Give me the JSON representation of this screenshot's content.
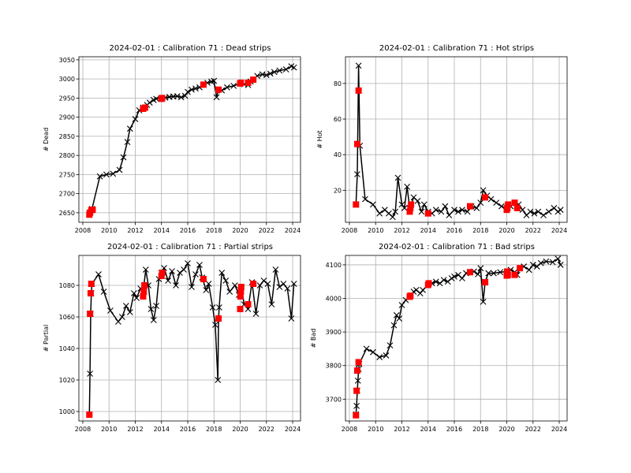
{
  "chart_data": [
    {
      "type": "line",
      "title": "2024-02-01 : Calibration 71 : Dead strips",
      "xlabel": "",
      "ylabel": "# Dead",
      "xlim": [
        2007.7,
        2024.6
      ],
      "ylim": [
        2625,
        3058
      ],
      "xticks": [
        2008,
        2010,
        2012,
        2014,
        2016,
        2018,
        2020,
        2022,
        2024
      ],
      "yticks": [
        2650,
        2700,
        2750,
        2800,
        2850,
        2900,
        2950,
        3000,
        3050
      ],
      "grid": true,
      "series": [
        {
          "role": "all",
          "color": "#000000",
          "marker": "x",
          "x": [
            2008.5,
            2008.7,
            2009.3,
            2009.8,
            2010.3,
            2010.8,
            2011.1,
            2011.4,
            2011.6,
            2012.0,
            2012.3,
            2012.6,
            2012.9,
            2013.1,
            2013.4,
            2013.6,
            2014.0,
            2014.3,
            2014.6,
            2014.9,
            2015.2,
            2015.5,
            2015.8,
            2016.0,
            2016.3,
            2016.6,
            2016.9,
            2017.2,
            2017.5,
            2017.8,
            2018.0,
            2018.2,
            2018.35,
            2018.6,
            2019.0,
            2019.5,
            2020.0,
            2020.3,
            2020.6,
            2020.8,
            2021.0,
            2021.3,
            2021.7,
            2022.0,
            2022.3,
            2022.6,
            2023.0,
            2023.5,
            2023.9,
            2024.1
          ],
          "y": [
            2650,
            2660,
            2745,
            2750,
            2752,
            2762,
            2795,
            2835,
            2870,
            2895,
            2918,
            2925,
            2932,
            2938,
            2945,
            2948,
            2950,
            2951,
            2953,
            2954,
            2955,
            2952,
            2956,
            2966,
            2972,
            2975,
            2978,
            2985,
            2990,
            2993,
            2995,
            2952,
            2972,
            2970,
            2978,
            2982,
            2988,
            2986,
            2984,
            2993,
            2998,
            3008,
            3012,
            3010,
            3014,
            3018,
            3022,
            3025,
            3033,
            3030
          ]
        },
        {
          "role": "calibration",
          "color": "#ff0000",
          "marker": "s",
          "x": [
            2008.5,
            2008.55,
            2008.65,
            2008.75,
            2012.6,
            2012.75,
            2014.0,
            2014.05,
            2017.2,
            2018.35,
            2020.0,
            2020.05,
            2020.6,
            2021.0
          ],
          "y": [
            2645,
            2650,
            2657,
            2658,
            2922,
            2925,
            2948,
            2950,
            2985,
            2972,
            2988,
            2990,
            2990,
            2998
          ]
        }
      ]
    },
    {
      "type": "line",
      "title": "2024-02-01 : Calibration 71 : Hot strips",
      "xlabel": "",
      "ylabel": "# Hot",
      "xlim": [
        2007.7,
        2024.6
      ],
      "ylim": [
        2,
        95
      ],
      "xticks": [
        2008,
        2010,
        2012,
        2014,
        2016,
        2018,
        2020,
        2022,
        2024
      ],
      "yticks": [
        20,
        40,
        60,
        80
      ],
      "grid": true,
      "series": [
        {
          "role": "all",
          "color": "#000000",
          "marker": "x",
          "x": [
            2008.5,
            2008.6,
            2008.7,
            2008.8,
            2009.2,
            2009.8,
            2010.3,
            2010.7,
            2011.0,
            2011.3,
            2011.5,
            2011.7,
            2012.0,
            2012.2,
            2012.4,
            2012.6,
            2012.9,
            2013.2,
            2013.5,
            2013.7,
            2014.0,
            2014.3,
            2014.6,
            2015.0,
            2015.3,
            2015.6,
            2016.0,
            2016.3,
            2016.6,
            2017.0,
            2017.3,
            2017.7,
            2018.0,
            2018.2,
            2018.5,
            2018.8,
            2019.2,
            2019.6,
            2020.0,
            2020.3,
            2020.6,
            2020.9,
            2021.2,
            2021.5,
            2021.8,
            2022.1,
            2022.4,
            2022.8,
            2023.2,
            2023.6,
            2023.9,
            2024.1
          ],
          "y": [
            12,
            29,
            90,
            45,
            15,
            12,
            7,
            9,
            7,
            5,
            8,
            27,
            12,
            10,
            22,
            10,
            16,
            14,
            8,
            12,
            8,
            7,
            9,
            8,
            11,
            6,
            9,
            8,
            9,
            8,
            11,
            10,
            13,
            20,
            17,
            15,
            13,
            11,
            10,
            11,
            13,
            12,
            9,
            6,
            8,
            7,
            8,
            6,
            8,
            10,
            8,
            9
          ]
        },
        {
          "role": "calibration",
          "color": "#ff0000",
          "marker": "s",
          "x": [
            2008.5,
            2008.6,
            2008.7,
            2012.6,
            2012.65,
            2012.7,
            2014.0,
            2017.2,
            2018.35,
            2020.0,
            2020.05,
            2020.1,
            2020.6,
            2020.8
          ],
          "y": [
            12,
            46,
            76,
            8,
            10,
            12,
            7,
            11,
            16,
            9,
            10,
            12,
            13,
            10
          ]
        }
      ]
    },
    {
      "type": "line",
      "title": "2024-02-01 : Calibration 71 : Partial strips",
      "xlabel": "",
      "ylabel": "# Partial",
      "xlim": [
        2007.7,
        2024.6
      ],
      "ylim": [
        994,
        1099
      ],
      "xticks": [
        2008,
        2010,
        2012,
        2014,
        2016,
        2018,
        2020,
        2022,
        2024
      ],
      "yticks": [
        1000,
        1020,
        1040,
        1060,
        1080
      ],
      "grid": true,
      "series": [
        {
          "role": "all",
          "color": "#000000",
          "marker": "x",
          "x": [
            2008.5,
            2008.55,
            2008.6,
            2008.65,
            2008.7,
            2009.2,
            2009.6,
            2010.1,
            2010.7,
            2011.0,
            2011.3,
            2011.6,
            2011.9,
            2012.1,
            2012.4,
            2012.6,
            2012.8,
            2013.0,
            2013.2,
            2013.4,
            2013.6,
            2013.8,
            2014.0,
            2014.2,
            2014.5,
            2014.8,
            2015.1,
            2015.4,
            2015.7,
            2016.0,
            2016.3,
            2016.6,
            2016.9,
            2017.1,
            2017.4,
            2017.6,
            2017.9,
            2018.1,
            2018.3,
            2018.35,
            2018.4,
            2018.6,
            2018.9,
            2019.2,
            2019.6,
            2019.9,
            2020.1,
            2020.3,
            2020.6,
            2020.9,
            2021.2,
            2021.5,
            2021.8,
            2022.1,
            2022.4,
            2022.7,
            2023.0,
            2023.3,
            2023.6,
            2023.9,
            2024.1
          ],
          "y": [
            998,
            1024,
            1062,
            1075,
            1081,
            1087,
            1076,
            1064,
            1057,
            1060,
            1067,
            1063,
            1075,
            1072,
            1078,
            1076,
            1090,
            1080,
            1065,
            1058,
            1067,
            1084,
            1088,
            1091,
            1083,
            1089,
            1080,
            1088,
            1090,
            1094,
            1079,
            1087,
            1093,
            1085,
            1077,
            1081,
            1066,
            1055,
            1020,
            1059,
            1066,
            1088,
            1083,
            1076,
            1080,
            1074,
            1079,
            1068,
            1065,
            1082,
            1062,
            1080,
            1083,
            1081,
            1068,
            1090,
            1079,
            1081,
            1078,
            1059,
            1081
          ]
        },
        {
          "role": "calibration",
          "color": "#ff0000",
          "marker": "s",
          "x": [
            2008.5,
            2008.55,
            2008.6,
            2008.65,
            2012.6,
            2012.65,
            2012.7,
            2014.0,
            2014.05,
            2017.2,
            2018.35,
            2020.0,
            2020.02,
            2020.05,
            2020.08,
            2020.6,
            2021.0
          ],
          "y": [
            998,
            1062,
            1075,
            1081,
            1073,
            1076,
            1080,
            1086,
            1088,
            1084,
            1059,
            1065,
            1073,
            1076,
            1079,
            1068,
            1081
          ]
        }
      ]
    },
    {
      "type": "line",
      "title": "2024-02-01 : Calibration 71 : Bad strips",
      "xlabel": "",
      "ylabel": "# Bad",
      "xlim": [
        2007.7,
        2024.6
      ],
      "ylim": [
        3635,
        4128
      ],
      "xticks": [
        2008,
        2010,
        2012,
        2014,
        2016,
        2018,
        2020,
        2022,
        2024
      ],
      "yticks": [
        3700,
        3800,
        3900,
        4000,
        4100
      ],
      "grid": true,
      "series": [
        {
          "role": "all",
          "color": "#000000",
          "marker": "x",
          "x": [
            2008.5,
            2008.55,
            2008.6,
            2008.65,
            2008.7,
            2008.75,
            2009.3,
            2009.8,
            2010.3,
            2010.8,
            2011.1,
            2011.4,
            2011.6,
            2011.8,
            2012.0,
            2012.3,
            2012.6,
            2012.9,
            2013.1,
            2013.4,
            2013.6,
            2014.0,
            2014.3,
            2014.6,
            2014.9,
            2015.2,
            2015.5,
            2015.8,
            2016.0,
            2016.3,
            2016.6,
            2016.9,
            2017.2,
            2017.5,
            2017.8,
            2018.0,
            2018.2,
            2018.35,
            2018.6,
            2019.0,
            2019.5,
            2020.0,
            2020.3,
            2020.6,
            2020.8,
            2021.0,
            2021.3,
            2021.7,
            2022.0,
            2022.3,
            2022.6,
            2023.0,
            2023.5,
            2023.9,
            2024.1
          ],
          "y": [
            3655,
            3680,
            3725,
            3755,
            3790,
            3805,
            3850,
            3840,
            3825,
            3830,
            3860,
            3920,
            3950,
            3940,
            3980,
            3995,
            4005,
            4020,
            4025,
            4015,
            4025,
            4040,
            4045,
            4050,
            4045,
            4055,
            4050,
            4060,
            4065,
            4070,
            4060,
            4075,
            4078,
            4080,
            4072,
            4090,
            3990,
            4050,
            4075,
            4075,
            4078,
            4080,
            4085,
            4078,
            4070,
            4090,
            4095,
            4085,
            4100,
            4095,
            4105,
            4110,
            4108,
            4118,
            4100
          ]
        },
        {
          "role": "calibration",
          "color": "#ff0000",
          "marker": "s",
          "x": [
            2008.5,
            2008.55,
            2008.6,
            2008.7,
            2012.6,
            2012.65,
            2014.0,
            2014.05,
            2017.2,
            2018.35,
            2020.0,
            2020.02,
            2020.05,
            2020.08,
            2020.6,
            2021.0
          ],
          "y": [
            3652,
            3725,
            3785,
            3810,
            4005,
            4008,
            4040,
            4045,
            4078,
            4048,
            4068,
            4075,
            4080,
            4070,
            4070,
            4090
          ]
        }
      ]
    }
  ]
}
